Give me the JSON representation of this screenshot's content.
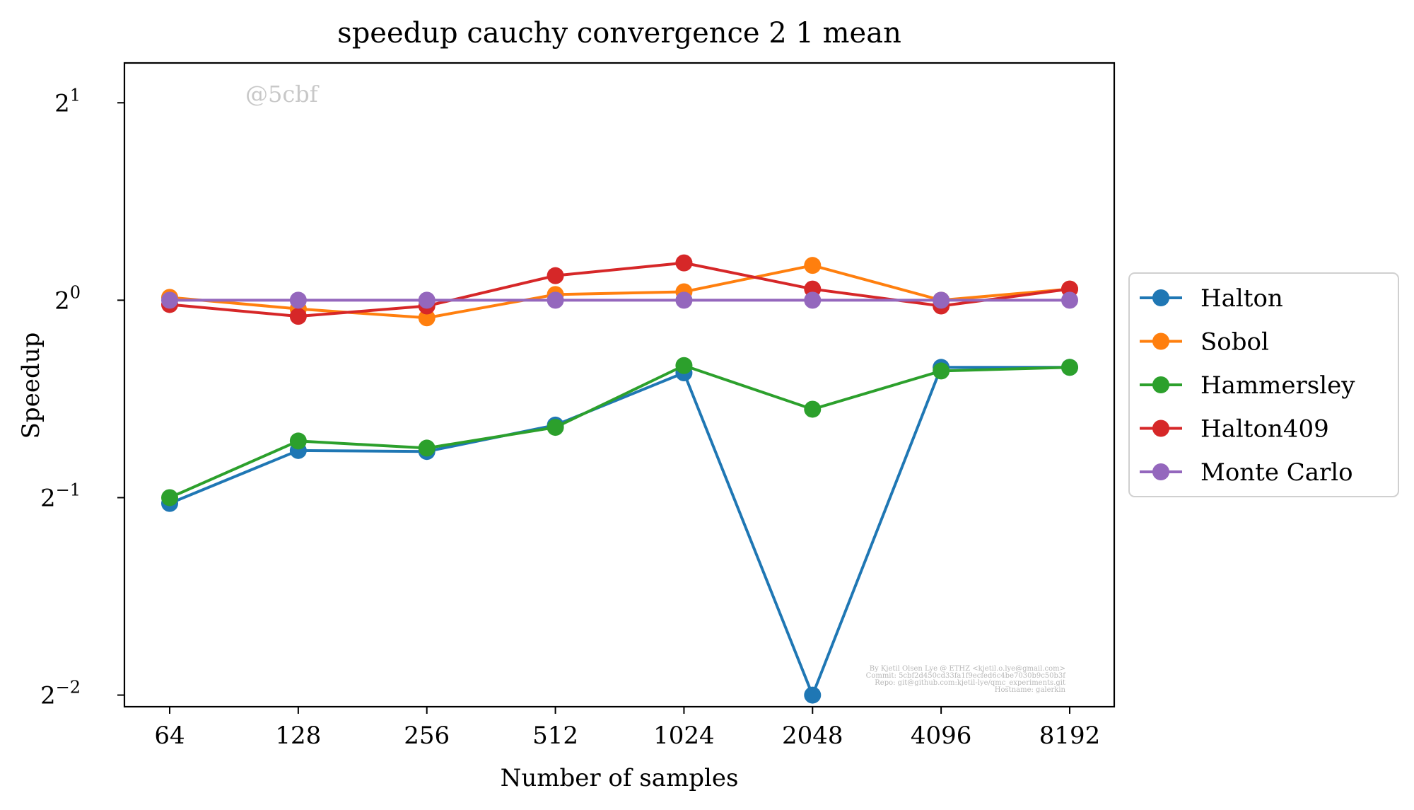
{
  "chart_data": {
    "type": "line",
    "title": "speedup cauchy convergence 2 1 mean",
    "xlabel": "Number of samples",
    "ylabel": "Speedup",
    "x_scale": "log2",
    "y_scale": "log2",
    "categories": [
      "64",
      "128",
      "256",
      "512",
      "1024",
      "2048",
      "4096",
      "8192"
    ],
    "x": [
      64,
      128,
      256,
      512,
      1024,
      2048,
      4096,
      8192
    ],
    "y_ticks": [
      {
        "base": "2",
        "exp": "1",
        "value": 2
      },
      {
        "base": "2",
        "exp": "0",
        "value": 1
      },
      {
        "base": "2",
        "exp": "−1",
        "value": 0.5
      },
      {
        "base": "2",
        "exp": "−2",
        "value": 0.25
      }
    ],
    "ylim": [
      0.24,
      2.3
    ],
    "grid": false,
    "legend_position": "right-outside",
    "series": [
      {
        "name": "Halton",
        "color": "#1f77b4",
        "values": [
          0.49,
          0.59,
          0.588,
          0.645,
          0.775,
          0.25,
          0.79,
          0.79
        ]
      },
      {
        "name": "Sobol",
        "color": "#ff7f0e",
        "values": [
          1.01,
          0.97,
          0.94,
          1.02,
          1.03,
          1.13,
          1.0,
          1.04
        ]
      },
      {
        "name": "Hammersley",
        "color": "#2ca02c",
        "values": [
          0.5,
          0.61,
          0.595,
          0.64,
          0.795,
          0.682,
          0.78,
          0.79
        ]
      },
      {
        "name": "Halton409",
        "color": "#d62728",
        "values": [
          0.985,
          0.945,
          0.98,
          1.09,
          1.14,
          1.04,
          0.98,
          1.04
        ]
      },
      {
        "name": "Monte Carlo",
        "color": "#9467bd",
        "values": [
          1.0,
          1.0,
          1.0,
          1.0,
          1.0,
          1.0,
          1.0,
          1.0
        ]
      }
    ],
    "annotations": {
      "tag": "@5cbf",
      "footer": [
        "By Kjetil Olsen Lye @ ETHZ <kjetil.o.lye@gmail.com>",
        "Commit: 5cbf2d450cd33fa1f9ecfed6c4be7030b9c50b3f",
        "Repo: git@github.com:kjetil-lye/qmc_experiments.git",
        "Hostname: galerkin"
      ]
    }
  }
}
